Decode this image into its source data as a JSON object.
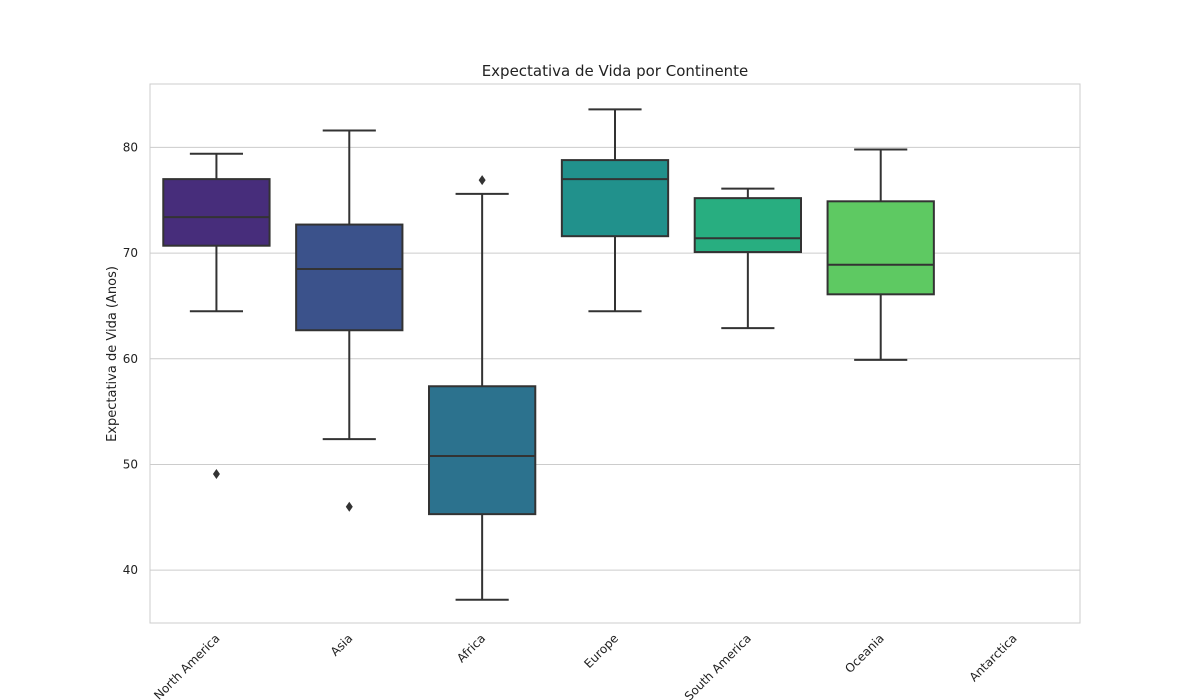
{
  "chart_data": {
    "type": "box",
    "title": "Expectativa de Vida por Continente",
    "xlabel": "",
    "ylabel": "Expectativa de Vida (Anos)",
    "ylim": [
      35,
      86
    ],
    "yticks": [
      40,
      50,
      60,
      70,
      80
    ],
    "grid": true,
    "categories": [
      "North America",
      "Asia",
      "Africa",
      "Europe",
      "South America",
      "Oceania",
      "Antarctica"
    ],
    "boxes": [
      {
        "category": "North America",
        "whisker_low": 64.5,
        "q1": 70.7,
        "median": 73.4,
        "q3": 77.0,
        "whisker_high": 79.4,
        "outliers": [
          49.1
        ],
        "color": "#472d7b"
      },
      {
        "category": "Asia",
        "whisker_low": 52.4,
        "q1": 62.7,
        "median": 68.5,
        "q3": 72.7,
        "whisker_high": 81.6,
        "outliers": [
          46.0
        ],
        "color": "#3b528b"
      },
      {
        "category": "Africa",
        "whisker_low": 37.2,
        "q1": 45.3,
        "median": 50.8,
        "q3": 57.4,
        "whisker_high": 75.6,
        "outliers": [
          76.9
        ],
        "color": "#2c728e"
      },
      {
        "category": "Europe",
        "whisker_low": 64.5,
        "q1": 71.6,
        "median": 77.0,
        "q3": 78.8,
        "whisker_high": 83.6,
        "outliers": [],
        "color": "#21918c"
      },
      {
        "category": "South America",
        "whisker_low": 62.9,
        "q1": 70.1,
        "median": 71.4,
        "q3": 75.2,
        "whisker_high": 76.1,
        "outliers": [],
        "color": "#28ae80"
      },
      {
        "category": "Oceania",
        "whisker_low": 59.9,
        "q1": 66.1,
        "median": 68.9,
        "q3": 74.9,
        "whisker_high": 79.8,
        "outliers": [],
        "color": "#5ec962"
      },
      {
        "category": "Antarctica",
        "whisker_low": null,
        "q1": null,
        "median": null,
        "q3": null,
        "whisker_high": null,
        "outliers": [],
        "color": "#addc30"
      }
    ]
  }
}
